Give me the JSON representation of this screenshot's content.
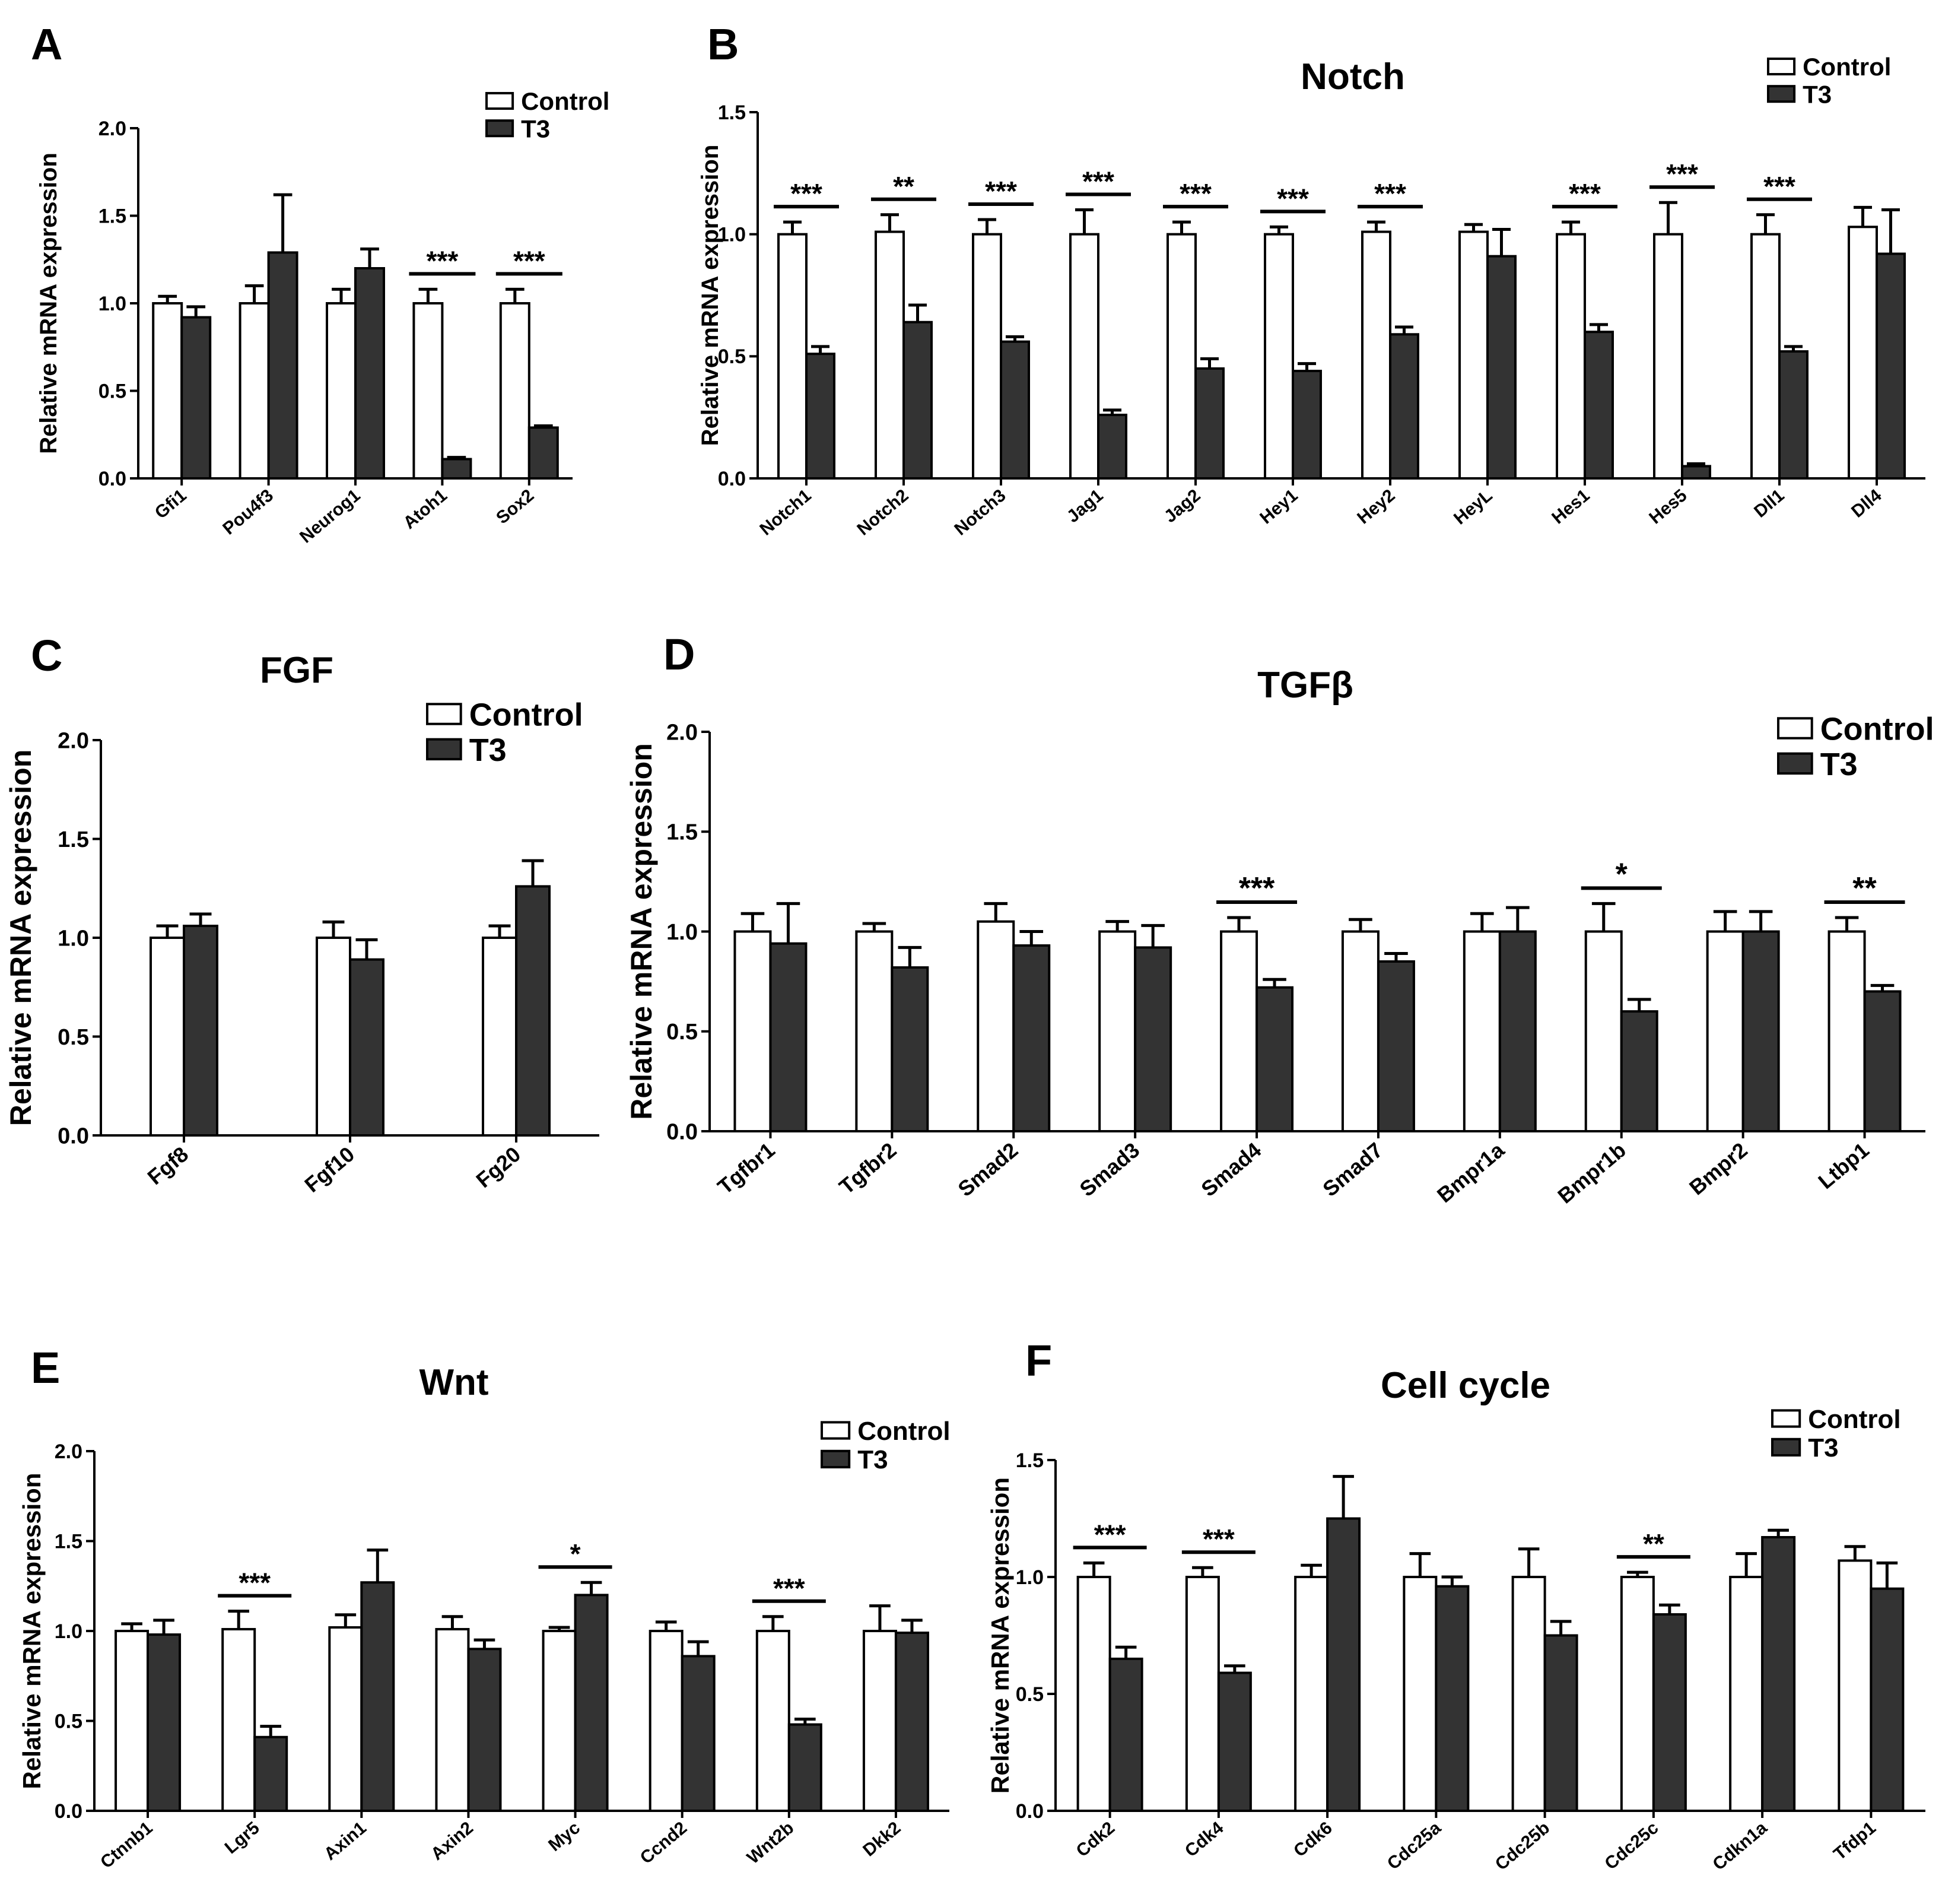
{
  "colors": {
    "control": "#ffffff",
    "t3": "#333333",
    "stroke": "#000000"
  },
  "chart_data": [
    {
      "id": "A",
      "letter": "A",
      "title": "",
      "type": "bar",
      "ylabel": "Relative mRNA expression",
      "ylim": [
        0,
        2.0
      ],
      "yticks": [
        "0.0",
        "0.5",
        "1.0",
        "1.5",
        "2.0"
      ],
      "legend": {
        "position": "top-right",
        "entries": [
          "Control",
          "T3"
        ]
      },
      "categories": [
        "Gfi1",
        "Pou4f3",
        "Neurog1",
        "Atoh1",
        "Sox2"
      ],
      "series": [
        {
          "name": "Control",
          "values": [
            1.0,
            1.0,
            1.0,
            1.0,
            1.0
          ],
          "errors": [
            0.04,
            0.1,
            0.08,
            0.08,
            0.08
          ]
        },
        {
          "name": "T3",
          "values": [
            0.92,
            1.29,
            1.2,
            0.11,
            0.29
          ],
          "errors": [
            0.06,
            0.33,
            0.11,
            0.01,
            0.01
          ]
        }
      ],
      "significance": [
        "",
        "",
        "",
        "***",
        "***"
      ]
    },
    {
      "id": "B",
      "letter": "B",
      "title": "Notch",
      "type": "bar",
      "ylabel": "Relative mRNA expression",
      "ylim": [
        0,
        1.5
      ],
      "yticks": [
        "0.0",
        "0.5",
        "1.0",
        "1.5"
      ],
      "legend": {
        "position": "top-right",
        "entries": [
          "Control",
          "T3"
        ]
      },
      "categories": [
        "Notch1",
        "Notch2",
        "Notch3",
        "Jag1",
        "Jag2",
        "Hey1",
        "Hey2",
        "HeyL",
        "Hes1",
        "Hes5",
        "Dll1",
        "Dll4"
      ],
      "series": [
        {
          "name": "Control",
          "values": [
            1.0,
            1.01,
            1.0,
            1.0,
            1.0,
            1.0,
            1.01,
            1.01,
            1.0,
            1.0,
            1.0,
            1.03
          ],
          "errors": [
            0.05,
            0.07,
            0.06,
            0.1,
            0.05,
            0.03,
            0.04,
            0.03,
            0.05,
            0.13,
            0.08,
            0.08
          ]
        },
        {
          "name": "T3",
          "values": [
            0.51,
            0.64,
            0.56,
            0.26,
            0.45,
            0.44,
            0.59,
            0.91,
            0.6,
            0.05,
            0.52,
            0.92
          ],
          "errors": [
            0.03,
            0.07,
            0.02,
            0.02,
            0.04,
            0.03,
            0.03,
            0.11,
            0.03,
            0.01,
            0.02,
            0.18
          ]
        }
      ],
      "significance": [
        "***",
        "**",
        "***",
        "***",
        "***",
        "***",
        "***",
        "",
        "***",
        "***",
        "***",
        ""
      ]
    },
    {
      "id": "C",
      "letter": "C",
      "title": "FGF",
      "type": "bar",
      "ylabel": "Relative mRNA expression",
      "ylim": [
        0,
        2.0
      ],
      "yticks": [
        "0.0",
        "0.5",
        "1.0",
        "1.5",
        "2.0"
      ],
      "legend": {
        "position": "top-right",
        "entries": [
          "Control",
          "T3"
        ]
      },
      "categories": [
        "Fgf8",
        "Fgf10",
        "Fg20"
      ],
      "series": [
        {
          "name": "Control",
          "values": [
            1.0,
            1.0,
            1.0
          ],
          "errors": [
            0.06,
            0.08,
            0.06
          ]
        },
        {
          "name": "T3",
          "values": [
            1.06,
            0.89,
            1.26
          ],
          "errors": [
            0.06,
            0.1,
            0.13
          ]
        }
      ],
      "significance": [
        "",
        "",
        ""
      ]
    },
    {
      "id": "D",
      "letter": "D",
      "title": "TGFβ",
      "type": "bar",
      "ylabel": "Relative mRNA expression",
      "ylim": [
        0,
        2.0
      ],
      "yticks": [
        "0.0",
        "0.5",
        "1.0",
        "1.5",
        "2.0"
      ],
      "legend": {
        "position": "top-right",
        "entries": [
          "Control",
          "T3"
        ]
      },
      "categories": [
        "Tgfbr1",
        "Tgfbr2",
        "Smad2",
        "Smad3",
        "Smad4",
        "Smad7",
        "Bmpr1a",
        "Bmpr1b",
        "Bmpr2",
        "Ltbp1"
      ],
      "series": [
        {
          "name": "Control",
          "values": [
            1.0,
            1.0,
            1.05,
            1.0,
            1.0,
            1.0,
            1.0,
            1.0,
            1.0,
            1.0
          ],
          "errors": [
            0.09,
            0.04,
            0.09,
            0.05,
            0.07,
            0.06,
            0.09,
            0.14,
            0.1,
            0.07
          ]
        },
        {
          "name": "T3",
          "values": [
            0.94,
            0.82,
            0.93,
            0.92,
            0.72,
            0.85,
            1.0,
            0.6,
            1.0,
            0.7
          ],
          "errors": [
            0.2,
            0.1,
            0.07,
            0.11,
            0.04,
            0.04,
            0.12,
            0.06,
            0.1,
            0.03
          ]
        }
      ],
      "significance": [
        "",
        "",
        "",
        "",
        "***",
        "",
        "",
        "*",
        "",
        "**"
      ]
    },
    {
      "id": "E",
      "letter": "E",
      "title": "Wnt",
      "type": "bar",
      "ylabel": "Relative mRNA expression",
      "ylim": [
        0,
        2.0
      ],
      "yticks": [
        "0.0",
        "0.5",
        "1.0",
        "1.5",
        "2.0"
      ],
      "legend": {
        "position": "top-right",
        "entries": [
          "Control",
          "T3"
        ]
      },
      "categories": [
        "Ctnnb1",
        "Lgr5",
        "Axin1",
        "Axin2",
        "Myc",
        "Ccnd2",
        "Wnt2b",
        "Dkk2"
      ],
      "series": [
        {
          "name": "Control",
          "values": [
            1.0,
            1.01,
            1.02,
            1.01,
            1.0,
            1.0,
            1.0,
            1.0
          ],
          "errors": [
            0.04,
            0.1,
            0.07,
            0.07,
            0.02,
            0.05,
            0.08,
            0.14
          ]
        },
        {
          "name": "T3",
          "values": [
            0.98,
            0.41,
            1.27,
            0.9,
            1.2,
            0.86,
            0.48,
            0.99
          ],
          "errors": [
            0.08,
            0.06,
            0.18,
            0.05,
            0.07,
            0.08,
            0.03,
            0.07
          ]
        }
      ],
      "significance": [
        "",
        "***",
        "",
        "",
        "*",
        "",
        "***",
        ""
      ]
    },
    {
      "id": "F",
      "letter": "F",
      "title": "Cell cycle",
      "type": "bar",
      "ylabel": "Relative mRNA expression",
      "ylim": [
        0,
        1.5
      ],
      "yticks": [
        "0.0",
        "0.5",
        "1.0",
        "1.5"
      ],
      "legend": {
        "position": "top-right",
        "entries": [
          "Control",
          "T3"
        ]
      },
      "categories": [
        "Cdk2",
        "Cdk4",
        "Cdk6",
        "Cdc25a",
        "Cdc25b",
        "Cdc25c",
        "Cdkn1a",
        "Tfdp1"
      ],
      "series": [
        {
          "name": "Control",
          "values": [
            1.0,
            1.0,
            1.0,
            1.0,
            1.0,
            1.0,
            1.0,
            1.07
          ],
          "errors": [
            0.06,
            0.04,
            0.05,
            0.1,
            0.12,
            0.02,
            0.1,
            0.06
          ]
        },
        {
          "name": "T3",
          "values": [
            0.65,
            0.59,
            1.25,
            0.96,
            0.75,
            0.84,
            1.17,
            0.95
          ],
          "errors": [
            0.05,
            0.03,
            0.18,
            0.04,
            0.06,
            0.04,
            0.03,
            0.11
          ]
        }
      ],
      "significance": [
        "***",
        "***",
        "",
        "",
        "",
        "**",
        "",
        ""
      ]
    }
  ]
}
